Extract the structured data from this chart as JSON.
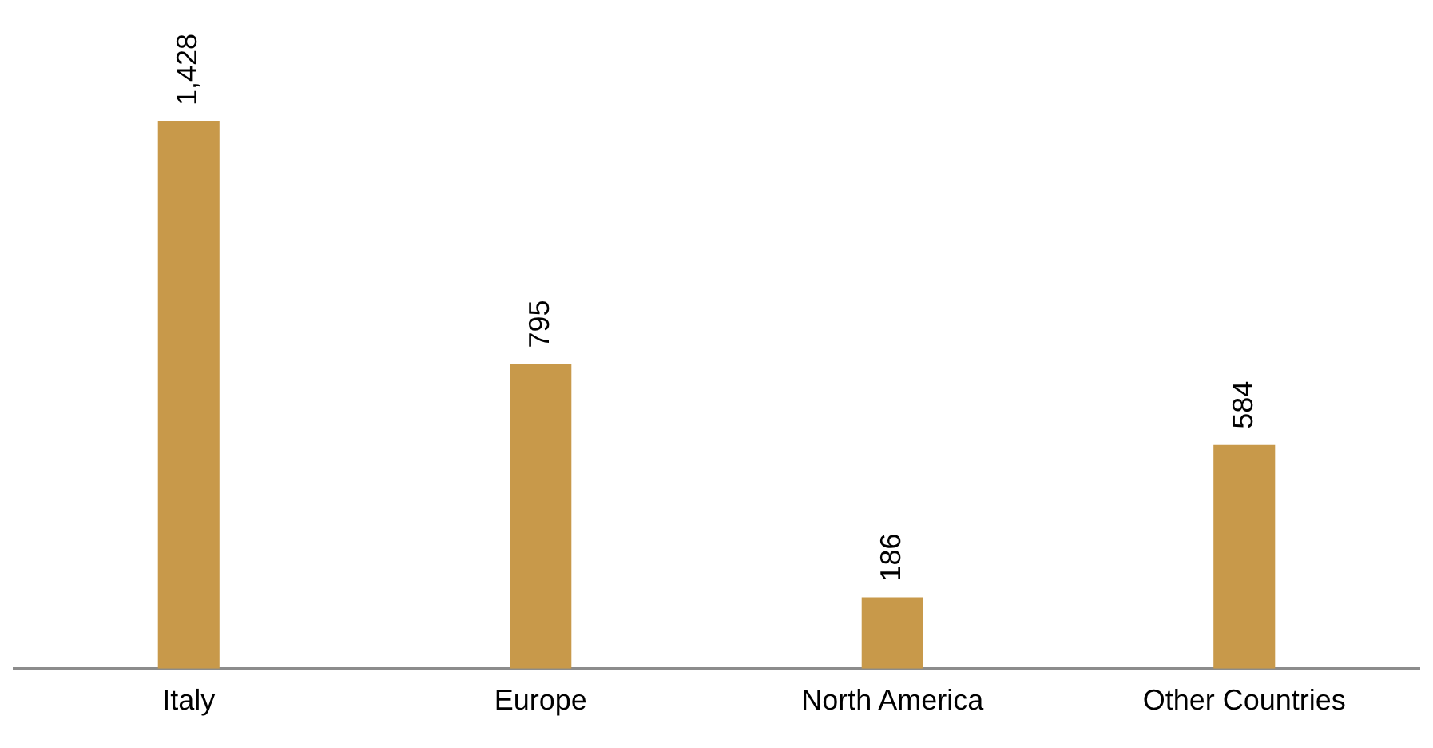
{
  "chart_data": {
    "type": "bar",
    "categories": [
      "Italy",
      "Europe",
      "North America",
      "Other Countries"
    ],
    "values": [
      1428,
      795,
      186,
      584
    ],
    "value_labels": [
      "1,428",
      "795",
      "186",
      "584"
    ],
    "color": "#c8994a",
    "tick_labels": "x",
    "grid": false,
    "legend": false
  }
}
